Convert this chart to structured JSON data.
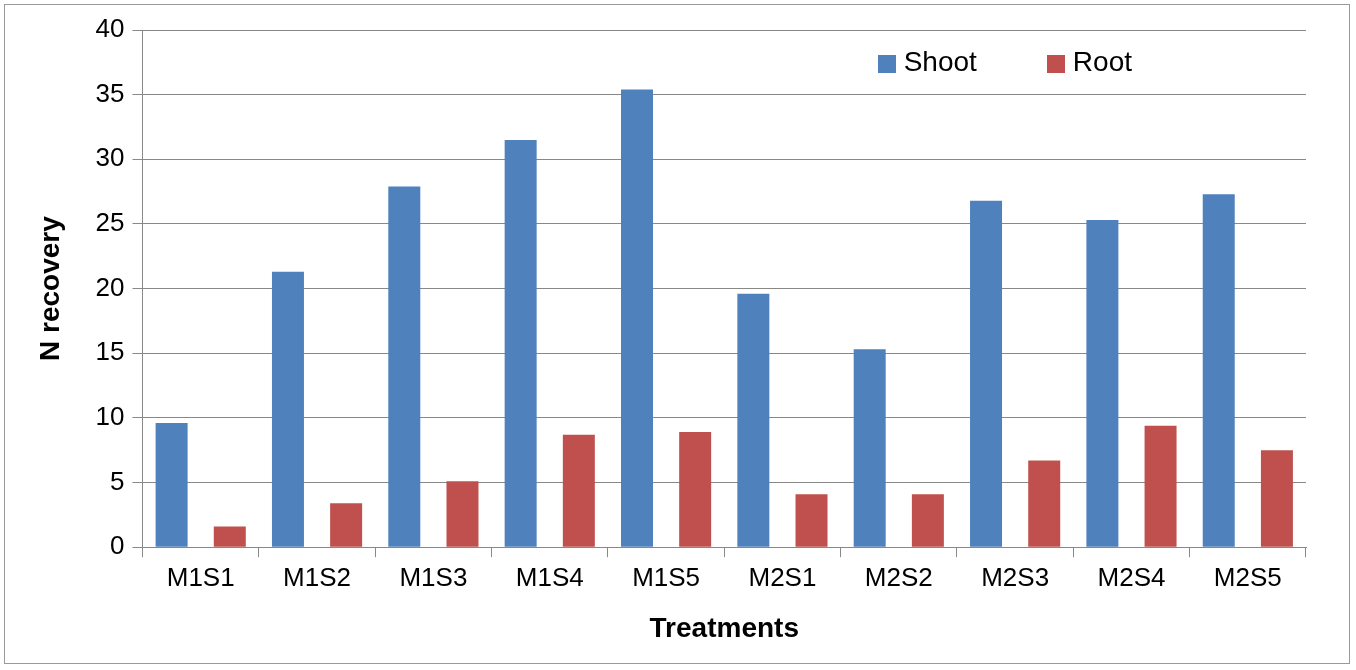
{
  "chart_data": {
    "type": "bar",
    "xlabel": "Treatments",
    "ylabel": "N recovery",
    "categories": [
      "M1S1",
      "M1S2",
      "M1S3",
      "M1S4",
      "M1S5",
      "M2S1",
      "M2S2",
      "M2S3",
      "M2S4",
      "M2S5"
    ],
    "series": [
      {
        "name": "Shoot",
        "color": "#4f81bd",
        "values": [
          9.6,
          21.3,
          27.9,
          31.5,
          35.4,
          19.6,
          15.3,
          26.8,
          25.3,
          27.3
        ]
      },
      {
        "name": "Root",
        "color": "#c0504d",
        "values": [
          1.6,
          3.4,
          5.1,
          8.7,
          8.9,
          4.1,
          4.1,
          6.7,
          9.4,
          7.5
        ]
      }
    ],
    "ylim": [
      0,
      40
    ],
    "yticks": [
      0,
      5,
      10,
      15,
      20,
      25,
      30,
      35,
      40
    ],
    "grid": "y",
    "legend": "top right"
  }
}
